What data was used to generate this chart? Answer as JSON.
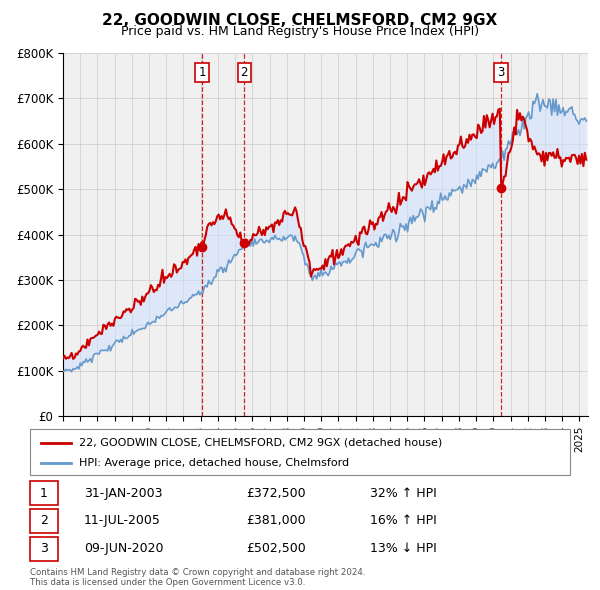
{
  "title": "22, GOODWIN CLOSE, CHELMSFORD, CM2 9GX",
  "subtitle": "Price paid vs. HM Land Registry's House Price Index (HPI)",
  "ylim": [
    0,
    800000
  ],
  "yticks": [
    0,
    100000,
    200000,
    300000,
    400000,
    500000,
    600000,
    700000,
    800000
  ],
  "ytick_labels": [
    "£0",
    "£100K",
    "£200K",
    "£300K",
    "£400K",
    "£500K",
    "£600K",
    "£700K",
    "£800K"
  ],
  "red_color": "#cc0000",
  "blue_color": "#6699cc",
  "fill_color": "#cce0ff",
  "vline_color": "#cc0000",
  "grid_color": "#cccccc",
  "background_color": "#f0f0f0",
  "sale_year_floats": [
    2003.08,
    2005.53,
    2020.44
  ],
  "sale_prices": [
    372500,
    381000,
    502500
  ],
  "sale_labels": [
    "1",
    "2",
    "3"
  ],
  "legend_red_label": "22, GOODWIN CLOSE, CHELMSFORD, CM2 9GX (detached house)",
  "legend_blue_label": "HPI: Average price, detached house, Chelmsford",
  "table_rows": [
    [
      "1",
      "31-JAN-2003",
      "£372,500",
      "32% ↑ HPI"
    ],
    [
      "2",
      "11-JUL-2005",
      "£381,000",
      "16% ↑ HPI"
    ],
    [
      "3",
      "09-JUN-2020",
      "£502,500",
      "13% ↓ HPI"
    ]
  ],
  "footnote1": "Contains HM Land Registry data © Crown copyright and database right 2024.",
  "footnote2": "This data is licensed under the Open Government Licence v3.0."
}
